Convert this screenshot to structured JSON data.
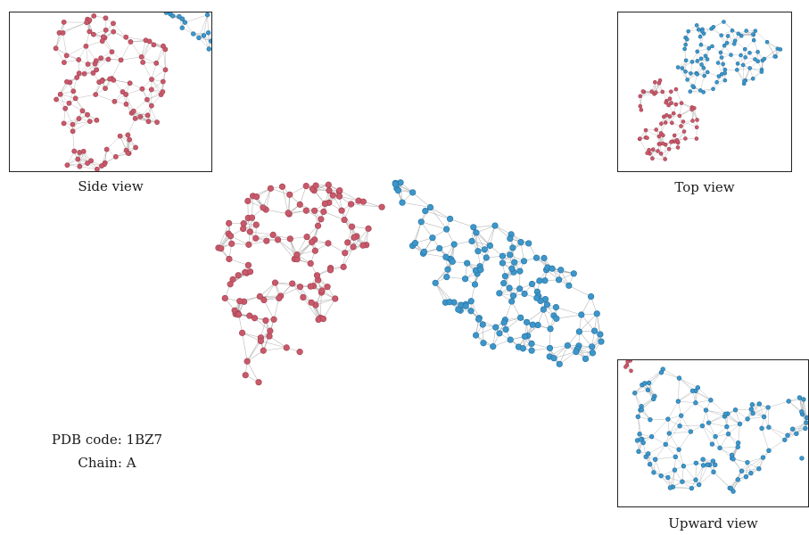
{
  "pdb": {
    "code_label": "PDB code: 1BZ7",
    "chain_label": "Chain: A"
  },
  "views": {
    "side": "Side view",
    "top": "Top view",
    "upward": "Upward view"
  },
  "colors": {
    "red_node": "#c8596b",
    "red_node_dark": "#a3404f",
    "blue_node": "#3d96c9",
    "blue_node_dark": "#2271a3",
    "edge": "#9a9a9a",
    "border": "#222222"
  },
  "icons": {
    "network": "protein-contact-network"
  }
}
